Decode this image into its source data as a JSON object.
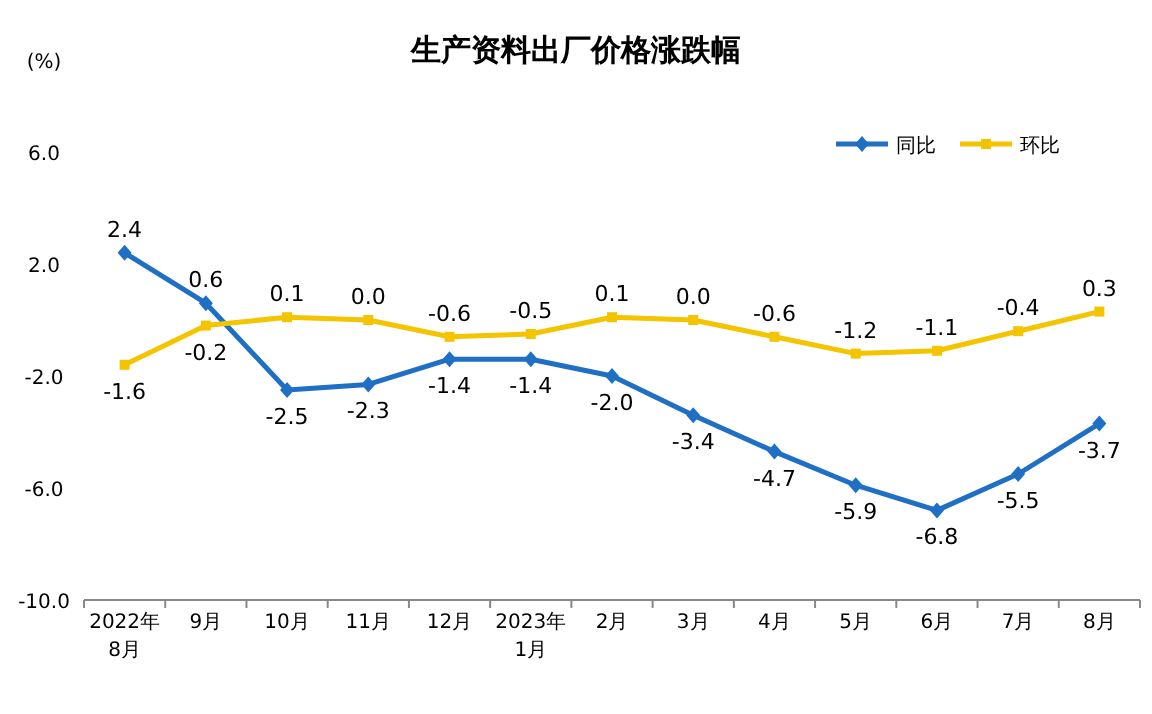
{
  "chart_data": {
    "type": "line",
    "title": "生产资料出厂价格涨跌幅",
    "ylabel": "(%)",
    "categories": [
      "2022年\n8月",
      "9月",
      "10月",
      "11月",
      "12月",
      "2023年\n1月",
      "2月",
      "3月",
      "4月",
      "5月",
      "6月",
      "7月",
      "8月"
    ],
    "ylim": [
      -10,
      6
    ],
    "yticks": [
      {
        "value": -10,
        "label": "-10.0"
      },
      {
        "value": -6,
        "label": "-6.0"
      },
      {
        "value": -2,
        "label": "-2.0"
      },
      {
        "value": 2,
        "label": "2.0"
      },
      {
        "value": 6,
        "label": "6.0"
      }
    ],
    "series": [
      {
        "name": "同比",
        "color": "#1f6fc5",
        "marker": "diamond",
        "values": [
          2.4,
          0.6,
          -2.5,
          -2.3,
          -1.4,
          -1.4,
          -2.0,
          -3.4,
          -4.7,
          -5.9,
          -6.8,
          -5.5,
          -3.7
        ],
        "value_labels": [
          "2.4",
          "0.6",
          "-2.5",
          "-2.3",
          "-1.4",
          "-1.4",
          "-2.0",
          "-3.4",
          "-4.7",
          "-5.9",
          "-6.8",
          "-5.5",
          "-3.7"
        ]
      },
      {
        "name": "环比",
        "color": "#f5c400",
        "marker": "square",
        "values": [
          -1.6,
          -0.2,
          0.1,
          0.0,
          -0.6,
          -0.5,
          0.1,
          0.0,
          -0.6,
          -1.2,
          -1.1,
          -0.4,
          0.3
        ],
        "value_labels": [
          "-1.6",
          "-0.2",
          "0.1",
          "0.0",
          "-0.6",
          "-0.5",
          "0.1",
          "0.0",
          "-0.6",
          "-1.2",
          "-1.1",
          "-0.4",
          "0.3"
        ]
      }
    ],
    "legend": "top right",
    "grid": false,
    "line_style": "solid"
  }
}
